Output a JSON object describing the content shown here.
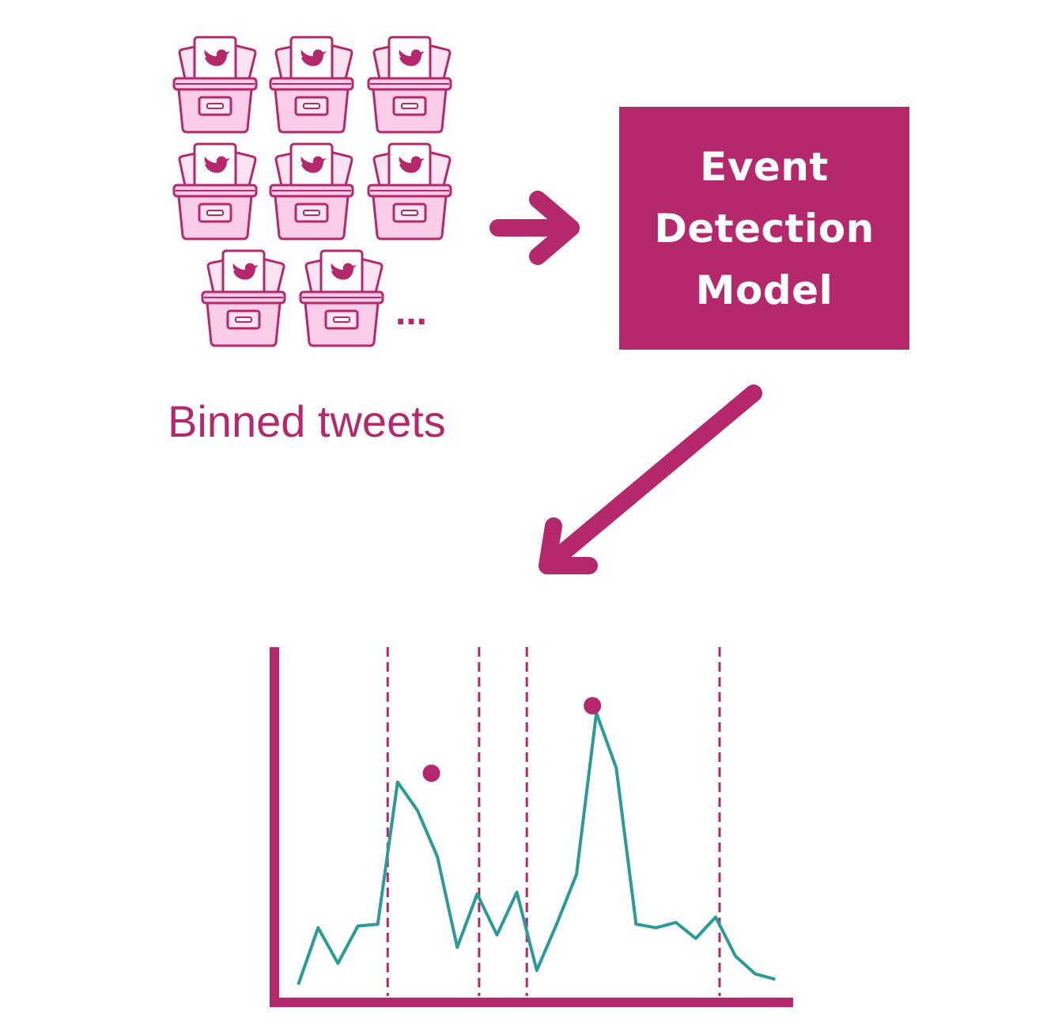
{
  "colors": {
    "accent": "#b5296c",
    "bin_fill": "#fbcde8",
    "bin_card": "#fde3f2",
    "series": "#2a9a9a"
  },
  "icons": {
    "bin": "tweet-bin-icon",
    "bird": "bird-icon"
  },
  "bins": {
    "count_shown": 8,
    "ellipsis": "...",
    "caption": "Binned tweets"
  },
  "model": {
    "line1": "Event",
    "line2": "Detection",
    "line3": "Model"
  },
  "chart_data": {
    "type": "line",
    "title": "",
    "xlabel": "",
    "ylabel": "",
    "series": [
      {
        "x": [
          0,
          1,
          2,
          3,
          4,
          5,
          6,
          7,
          8,
          9,
          10,
          11,
          12,
          13,
          14,
          15,
          16,
          17,
          18,
          19,
          20,
          21,
          22,
          23,
          24
        ],
        "values": [
          1,
          4.2,
          2.2,
          4.3,
          4.4,
          12.4,
          10.8,
          8.2,
          3.1,
          6.1,
          3.8,
          6.2,
          1.8,
          4.4,
          7.2,
          16.3,
          13.2,
          4.4,
          4.2,
          4.5,
          3.6,
          4.8,
          2.6,
          1.6,
          1.3
        ]
      }
    ],
    "peaks": [
      {
        "x": 6.7,
        "y": 12.9
      },
      {
        "x": 14.8,
        "y": 16.7
      }
    ],
    "event_boundaries": [
      4.5,
      9.1,
      11.5,
      21.2
    ],
    "xlim": [
      -1.2,
      24.9
    ],
    "ylim": [
      0,
      20
    ],
    "grid": false
  }
}
